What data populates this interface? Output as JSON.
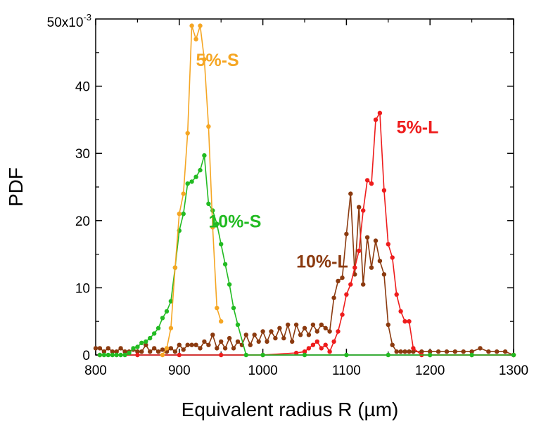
{
  "chart_data": {
    "type": "line",
    "title": "",
    "xlabel": "Equivalent radius R (µm)",
    "ylabel": "PDF",
    "xlim": [
      800,
      1300
    ],
    "ylim": [
      0,
      0.05
    ],
    "x_ticks": [
      800,
      900,
      1000,
      1100,
      1200,
      1300
    ],
    "y_ticks": [
      0,
      10,
      20,
      30,
      40
    ],
    "y_tick_labels": [
      "0",
      "10",
      "20",
      "30",
      "40"
    ],
    "y_top_label": "50x10",
    "y_top_exponent": "-3",
    "series": [
      {
        "name": "5%-S",
        "color": "#F5A623",
        "x": [
          880,
          885,
          890,
          895,
          900,
          905,
          910,
          915,
          920,
          925,
          930,
          935,
          940,
          945,
          950
        ],
        "y": [
          0,
          0.001,
          0.004,
          0.013,
          0.021,
          0.024,
          0.033,
          0.049,
          0.047,
          0.049,
          0.044,
          0.034,
          0.019,
          0.007,
          0.005
        ]
      },
      {
        "name": "10%-S",
        "color": "#22BB22",
        "x": [
          805,
          810,
          815,
          820,
          825,
          830,
          835,
          840,
          845,
          850,
          855,
          860,
          865,
          870,
          875,
          880,
          885,
          890,
          895,
          900,
          905,
          910,
          915,
          920,
          925,
          930,
          935,
          940,
          945,
          950,
          955,
          960,
          965,
          970,
          980,
          1000,
          1050,
          1100,
          1150,
          1200,
          1250,
          1300
        ],
        "y": [
          0,
          0,
          0,
          0,
          0,
          0,
          0,
          0.0003,
          0.001,
          0.0012,
          0.0018,
          0.002,
          0.0025,
          0.0032,
          0.004,
          0.0055,
          0.0065,
          0.008,
          0.013,
          0.0185,
          0.021,
          0.0255,
          0.0258,
          0.0265,
          0.0275,
          0.0297,
          0.0225,
          0.0215,
          0.0195,
          0.0165,
          0.0135,
          0.0105,
          0.007,
          0.0045,
          0,
          0,
          0,
          0,
          0,
          0,
          0,
          0
        ]
      },
      {
        "name": "5%-L",
        "color": "#EE1C1C",
        "x": [
          805,
          850,
          900,
          950,
          1000,
          1040,
          1050,
          1055,
          1060,
          1065,
          1070,
          1075,
          1080,
          1085,
          1090,
          1095,
          1100,
          1105,
          1110,
          1115,
          1120,
          1125,
          1130,
          1135,
          1140,
          1145,
          1150,
          1155,
          1160,
          1165,
          1170,
          1175,
          1180,
          1190,
          1200,
          1250,
          1300
        ],
        "y": [
          0,
          0,
          0,
          0,
          0,
          0.0003,
          0.0005,
          0.001,
          0.0015,
          0.002,
          0.001,
          0.0015,
          0.0005,
          0.002,
          0.0035,
          0.006,
          0.009,
          0.0105,
          0.013,
          0.0155,
          0.0215,
          0.026,
          0.0255,
          0.035,
          0.036,
          0.0245,
          0.0165,
          0.0145,
          0.009,
          0.0065,
          0.005,
          0.005,
          0.001,
          0,
          0,
          0,
          0
        ]
      },
      {
        "name": "10%-L",
        "color": "#8B3A0F",
        "x": [
          800,
          805,
          810,
          815,
          820,
          825,
          830,
          835,
          840,
          845,
          850,
          855,
          860,
          865,
          870,
          875,
          880,
          885,
          890,
          895,
          900,
          905,
          910,
          915,
          920,
          925,
          930,
          935,
          940,
          945,
          950,
          955,
          960,
          965,
          970,
          975,
          980,
          985,
          990,
          995,
          1000,
          1005,
          1010,
          1015,
          1020,
          1025,
          1030,
          1035,
          1040,
          1045,
          1050,
          1055,
          1060,
          1065,
          1070,
          1075,
          1080,
          1085,
          1090,
          1095,
          1100,
          1105,
          1110,
          1115,
          1120,
          1125,
          1130,
          1135,
          1140,
          1145,
          1150,
          1155,
          1160,
          1165,
          1170,
          1175,
          1180,
          1190,
          1200,
          1210,
          1220,
          1230,
          1240,
          1250,
          1260,
          1270,
          1280,
          1290,
          1300
        ],
        "y": [
          0.001,
          0.001,
          0.0005,
          0.001,
          0.0005,
          0.0005,
          0.001,
          0.0005,
          0.0005,
          0.0008,
          0.0005,
          0.0005,
          0.0015,
          0.0005,
          0.001,
          0.0005,
          0.0008,
          0.0005,
          0.001,
          0.0005,
          0.0015,
          0.0008,
          0.0015,
          0.0015,
          0.0015,
          0.001,
          0.002,
          0.0015,
          0.003,
          0.001,
          0.002,
          0.001,
          0.0025,
          0.001,
          0.002,
          0.0015,
          0.003,
          0.0015,
          0.003,
          0.002,
          0.0035,
          0.002,
          0.0035,
          0.0025,
          0.004,
          0.0025,
          0.0045,
          0.002,
          0.0045,
          0.003,
          0.004,
          0.003,
          0.0045,
          0.0035,
          0.0045,
          0.004,
          0.0035,
          0.0085,
          0.011,
          0.0115,
          0.018,
          0.024,
          0.012,
          0.022,
          0.0105,
          0.0175,
          0.013,
          0.017,
          0.014,
          0.012,
          0.0045,
          0.0015,
          0.0005,
          0.0005,
          0.0005,
          0.0005,
          0.0005,
          0.0005,
          0.0005,
          0.0005,
          0.0005,
          0.0005,
          0.0005,
          0.0005,
          0.001,
          0.0005,
          0.0005,
          0.0005,
          0
        ]
      }
    ],
    "annotations": [
      {
        "text": "5%-S",
        "series": "5%-S",
        "x": 920,
        "y": 0.043
      },
      {
        "text": "10%-S",
        "series": "10%-S",
        "x": 935,
        "y": 0.019
      },
      {
        "text": "5%-L",
        "series": "5%-L",
        "x": 1160,
        "y": 0.033
      },
      {
        "text": "10%-L",
        "series": "10%-L",
        "x": 1040,
        "y": 0.013
      }
    ]
  }
}
